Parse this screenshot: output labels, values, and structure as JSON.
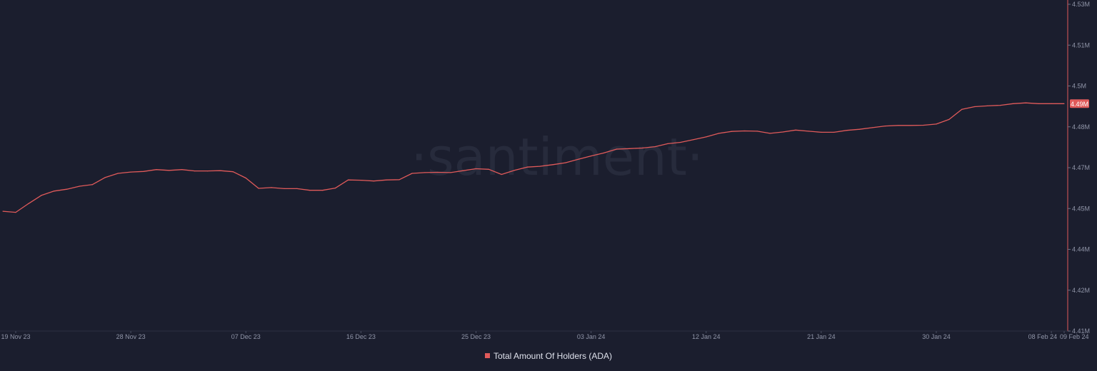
{
  "watermark": "·santiment·",
  "chart_data": {
    "type": "line",
    "title": "",
    "xlabel": "",
    "ylabel": "",
    "x_ticks": [
      "19 Nov 23",
      "28 Nov 23",
      "07 Dec 23",
      "16 Dec 23",
      "25 Dec 23",
      "03 Jan 24",
      "12 Jan 24",
      "21 Jan 24",
      "30 Jan 24",
      "08 Feb 24",
      "09 Feb 24"
    ],
    "y_ticks": [
      "4.53M",
      "4.51M",
      "4.5M",
      "4.48M",
      "4.47M",
      "4.45M",
      "4.44M",
      "4.42M",
      "4.41M"
    ],
    "y_tick_values": [
      4.53,
      4.515,
      4.5,
      4.485,
      4.47,
      4.455,
      4.44,
      4.425,
      4.41
    ],
    "ylim": [
      4.41,
      4.53
    ],
    "xlim": [
      "2023-11-19",
      "2024-02-09"
    ],
    "grid": false,
    "legend_position": "bottom-center",
    "current_value_label": "4.49M",
    "series": [
      {
        "name": "Total Amount Of Holders (ADA)",
        "color": "#e05a5a",
        "x": [
          "2023-11-18",
          "2023-11-19",
          "2023-11-20",
          "2023-11-21",
          "2023-11-22",
          "2023-11-23",
          "2023-11-24",
          "2023-11-25",
          "2023-11-26",
          "2023-11-27",
          "2023-11-28",
          "2023-11-29",
          "2023-11-30",
          "2023-12-01",
          "2023-12-02",
          "2023-12-03",
          "2023-12-04",
          "2023-12-05",
          "2023-12-06",
          "2023-12-07",
          "2023-12-08",
          "2023-12-09",
          "2023-12-10",
          "2023-12-11",
          "2023-12-12",
          "2023-12-13",
          "2023-12-14",
          "2023-12-15",
          "2023-12-16",
          "2023-12-17",
          "2023-12-18",
          "2023-12-19",
          "2023-12-20",
          "2023-12-21",
          "2023-12-22",
          "2023-12-23",
          "2023-12-24",
          "2023-12-25",
          "2023-12-26",
          "2023-12-27",
          "2023-12-28",
          "2023-12-29",
          "2023-12-30",
          "2023-12-31",
          "2024-01-01",
          "2024-01-02",
          "2024-01-03",
          "2024-01-04",
          "2024-01-05",
          "2024-01-06",
          "2024-01-07",
          "2024-01-08",
          "2024-01-09",
          "2024-01-10",
          "2024-01-11",
          "2024-01-12",
          "2024-01-13",
          "2024-01-14",
          "2024-01-15",
          "2024-01-16",
          "2024-01-17",
          "2024-01-18",
          "2024-01-19",
          "2024-01-20",
          "2024-01-21",
          "2024-01-22",
          "2024-01-23",
          "2024-01-24",
          "2024-01-25",
          "2024-01-26",
          "2024-01-27",
          "2024-01-28",
          "2024-01-29",
          "2024-01-30",
          "2024-01-31",
          "2024-02-01",
          "2024-02-02",
          "2024-02-03",
          "2024-02-04",
          "2024-02-05",
          "2024-02-06",
          "2024-02-07",
          "2024-02-08",
          "2024-02-09"
        ],
        "values": [
          4.454,
          4.4536,
          4.4568,
          4.4598,
          4.4614,
          4.4621,
          4.4632,
          4.4638,
          4.4664,
          4.4679,
          4.4684,
          4.4686,
          4.4693,
          4.469,
          4.4693,
          4.4688,
          4.4688,
          4.4689,
          4.4685,
          4.4662,
          4.4624,
          4.4627,
          4.4623,
          4.4623,
          4.4617,
          4.4617,
          4.4625,
          4.4655,
          4.4654,
          4.4651,
          4.4655,
          4.4656,
          4.4679,
          4.4682,
          4.4683,
          4.4682,
          4.4689,
          4.4696,
          4.4694,
          4.4675,
          4.469,
          4.4702,
          4.4705,
          4.4711,
          4.4718,
          4.4731,
          4.4743,
          4.4754,
          4.4768,
          4.477,
          4.4772,
          4.4777,
          4.4788,
          4.4793,
          4.4803,
          4.4813,
          4.4826,
          4.4833,
          4.4835,
          4.4834,
          4.4826,
          4.4831,
          4.4838,
          4.4834,
          4.483,
          4.483,
          4.4837,
          4.4841,
          4.4847,
          4.4853,
          4.4855,
          4.4855,
          4.4856,
          4.486,
          4.4877,
          4.4914,
          4.4924,
          4.4927,
          4.4929,
          4.4935,
          4.4938,
          4.4935,
          4.4935,
          4.4935
        ]
      }
    ]
  }
}
